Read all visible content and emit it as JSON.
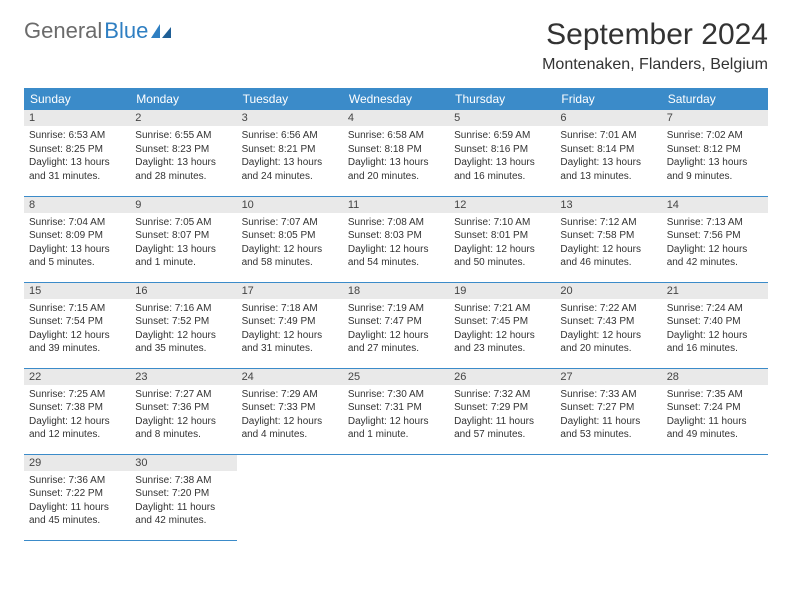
{
  "logo": {
    "text1": "General",
    "text2": "Blue"
  },
  "title": "September 2024",
  "location": "Montenaken, Flanders, Belgium",
  "colors": {
    "header_bg": "#3b8bc9",
    "header_text": "#ffffff",
    "daynum_bg": "#e9e9e9",
    "row_border": "#3b8bc9",
    "logo_gray": "#6b6b6b",
    "logo_blue": "#2f7fc2"
  },
  "weekdays": [
    "Sunday",
    "Monday",
    "Tuesday",
    "Wednesday",
    "Thursday",
    "Friday",
    "Saturday"
  ],
  "weeks": [
    [
      {
        "n": "1",
        "sr": "Sunrise: 6:53 AM",
        "ss": "Sunset: 8:25 PM",
        "dl": "Daylight: 13 hours and 31 minutes."
      },
      {
        "n": "2",
        "sr": "Sunrise: 6:55 AM",
        "ss": "Sunset: 8:23 PM",
        "dl": "Daylight: 13 hours and 28 minutes."
      },
      {
        "n": "3",
        "sr": "Sunrise: 6:56 AM",
        "ss": "Sunset: 8:21 PM",
        "dl": "Daylight: 13 hours and 24 minutes."
      },
      {
        "n": "4",
        "sr": "Sunrise: 6:58 AM",
        "ss": "Sunset: 8:18 PM",
        "dl": "Daylight: 13 hours and 20 minutes."
      },
      {
        "n": "5",
        "sr": "Sunrise: 6:59 AM",
        "ss": "Sunset: 8:16 PM",
        "dl": "Daylight: 13 hours and 16 minutes."
      },
      {
        "n": "6",
        "sr": "Sunrise: 7:01 AM",
        "ss": "Sunset: 8:14 PM",
        "dl": "Daylight: 13 hours and 13 minutes."
      },
      {
        "n": "7",
        "sr": "Sunrise: 7:02 AM",
        "ss": "Sunset: 8:12 PM",
        "dl": "Daylight: 13 hours and 9 minutes."
      }
    ],
    [
      {
        "n": "8",
        "sr": "Sunrise: 7:04 AM",
        "ss": "Sunset: 8:09 PM",
        "dl": "Daylight: 13 hours and 5 minutes."
      },
      {
        "n": "9",
        "sr": "Sunrise: 7:05 AM",
        "ss": "Sunset: 8:07 PM",
        "dl": "Daylight: 13 hours and 1 minute."
      },
      {
        "n": "10",
        "sr": "Sunrise: 7:07 AM",
        "ss": "Sunset: 8:05 PM",
        "dl": "Daylight: 12 hours and 58 minutes."
      },
      {
        "n": "11",
        "sr": "Sunrise: 7:08 AM",
        "ss": "Sunset: 8:03 PM",
        "dl": "Daylight: 12 hours and 54 minutes."
      },
      {
        "n": "12",
        "sr": "Sunrise: 7:10 AM",
        "ss": "Sunset: 8:01 PM",
        "dl": "Daylight: 12 hours and 50 minutes."
      },
      {
        "n": "13",
        "sr": "Sunrise: 7:12 AM",
        "ss": "Sunset: 7:58 PM",
        "dl": "Daylight: 12 hours and 46 minutes."
      },
      {
        "n": "14",
        "sr": "Sunrise: 7:13 AM",
        "ss": "Sunset: 7:56 PM",
        "dl": "Daylight: 12 hours and 42 minutes."
      }
    ],
    [
      {
        "n": "15",
        "sr": "Sunrise: 7:15 AM",
        "ss": "Sunset: 7:54 PM",
        "dl": "Daylight: 12 hours and 39 minutes."
      },
      {
        "n": "16",
        "sr": "Sunrise: 7:16 AM",
        "ss": "Sunset: 7:52 PM",
        "dl": "Daylight: 12 hours and 35 minutes."
      },
      {
        "n": "17",
        "sr": "Sunrise: 7:18 AM",
        "ss": "Sunset: 7:49 PM",
        "dl": "Daylight: 12 hours and 31 minutes."
      },
      {
        "n": "18",
        "sr": "Sunrise: 7:19 AM",
        "ss": "Sunset: 7:47 PM",
        "dl": "Daylight: 12 hours and 27 minutes."
      },
      {
        "n": "19",
        "sr": "Sunrise: 7:21 AM",
        "ss": "Sunset: 7:45 PM",
        "dl": "Daylight: 12 hours and 23 minutes."
      },
      {
        "n": "20",
        "sr": "Sunrise: 7:22 AM",
        "ss": "Sunset: 7:43 PM",
        "dl": "Daylight: 12 hours and 20 minutes."
      },
      {
        "n": "21",
        "sr": "Sunrise: 7:24 AM",
        "ss": "Sunset: 7:40 PM",
        "dl": "Daylight: 12 hours and 16 minutes."
      }
    ],
    [
      {
        "n": "22",
        "sr": "Sunrise: 7:25 AM",
        "ss": "Sunset: 7:38 PM",
        "dl": "Daylight: 12 hours and 12 minutes."
      },
      {
        "n": "23",
        "sr": "Sunrise: 7:27 AM",
        "ss": "Sunset: 7:36 PM",
        "dl": "Daylight: 12 hours and 8 minutes."
      },
      {
        "n": "24",
        "sr": "Sunrise: 7:29 AM",
        "ss": "Sunset: 7:33 PM",
        "dl": "Daylight: 12 hours and 4 minutes."
      },
      {
        "n": "25",
        "sr": "Sunrise: 7:30 AM",
        "ss": "Sunset: 7:31 PM",
        "dl": "Daylight: 12 hours and 1 minute."
      },
      {
        "n": "26",
        "sr": "Sunrise: 7:32 AM",
        "ss": "Sunset: 7:29 PM",
        "dl": "Daylight: 11 hours and 57 minutes."
      },
      {
        "n": "27",
        "sr": "Sunrise: 7:33 AM",
        "ss": "Sunset: 7:27 PM",
        "dl": "Daylight: 11 hours and 53 minutes."
      },
      {
        "n": "28",
        "sr": "Sunrise: 7:35 AM",
        "ss": "Sunset: 7:24 PM",
        "dl": "Daylight: 11 hours and 49 minutes."
      }
    ],
    [
      {
        "n": "29",
        "sr": "Sunrise: 7:36 AM",
        "ss": "Sunset: 7:22 PM",
        "dl": "Daylight: 11 hours and 45 minutes."
      },
      {
        "n": "30",
        "sr": "Sunrise: 7:38 AM",
        "ss": "Sunset: 7:20 PM",
        "dl": "Daylight: 11 hours and 42 minutes."
      },
      null,
      null,
      null,
      null,
      null
    ]
  ]
}
